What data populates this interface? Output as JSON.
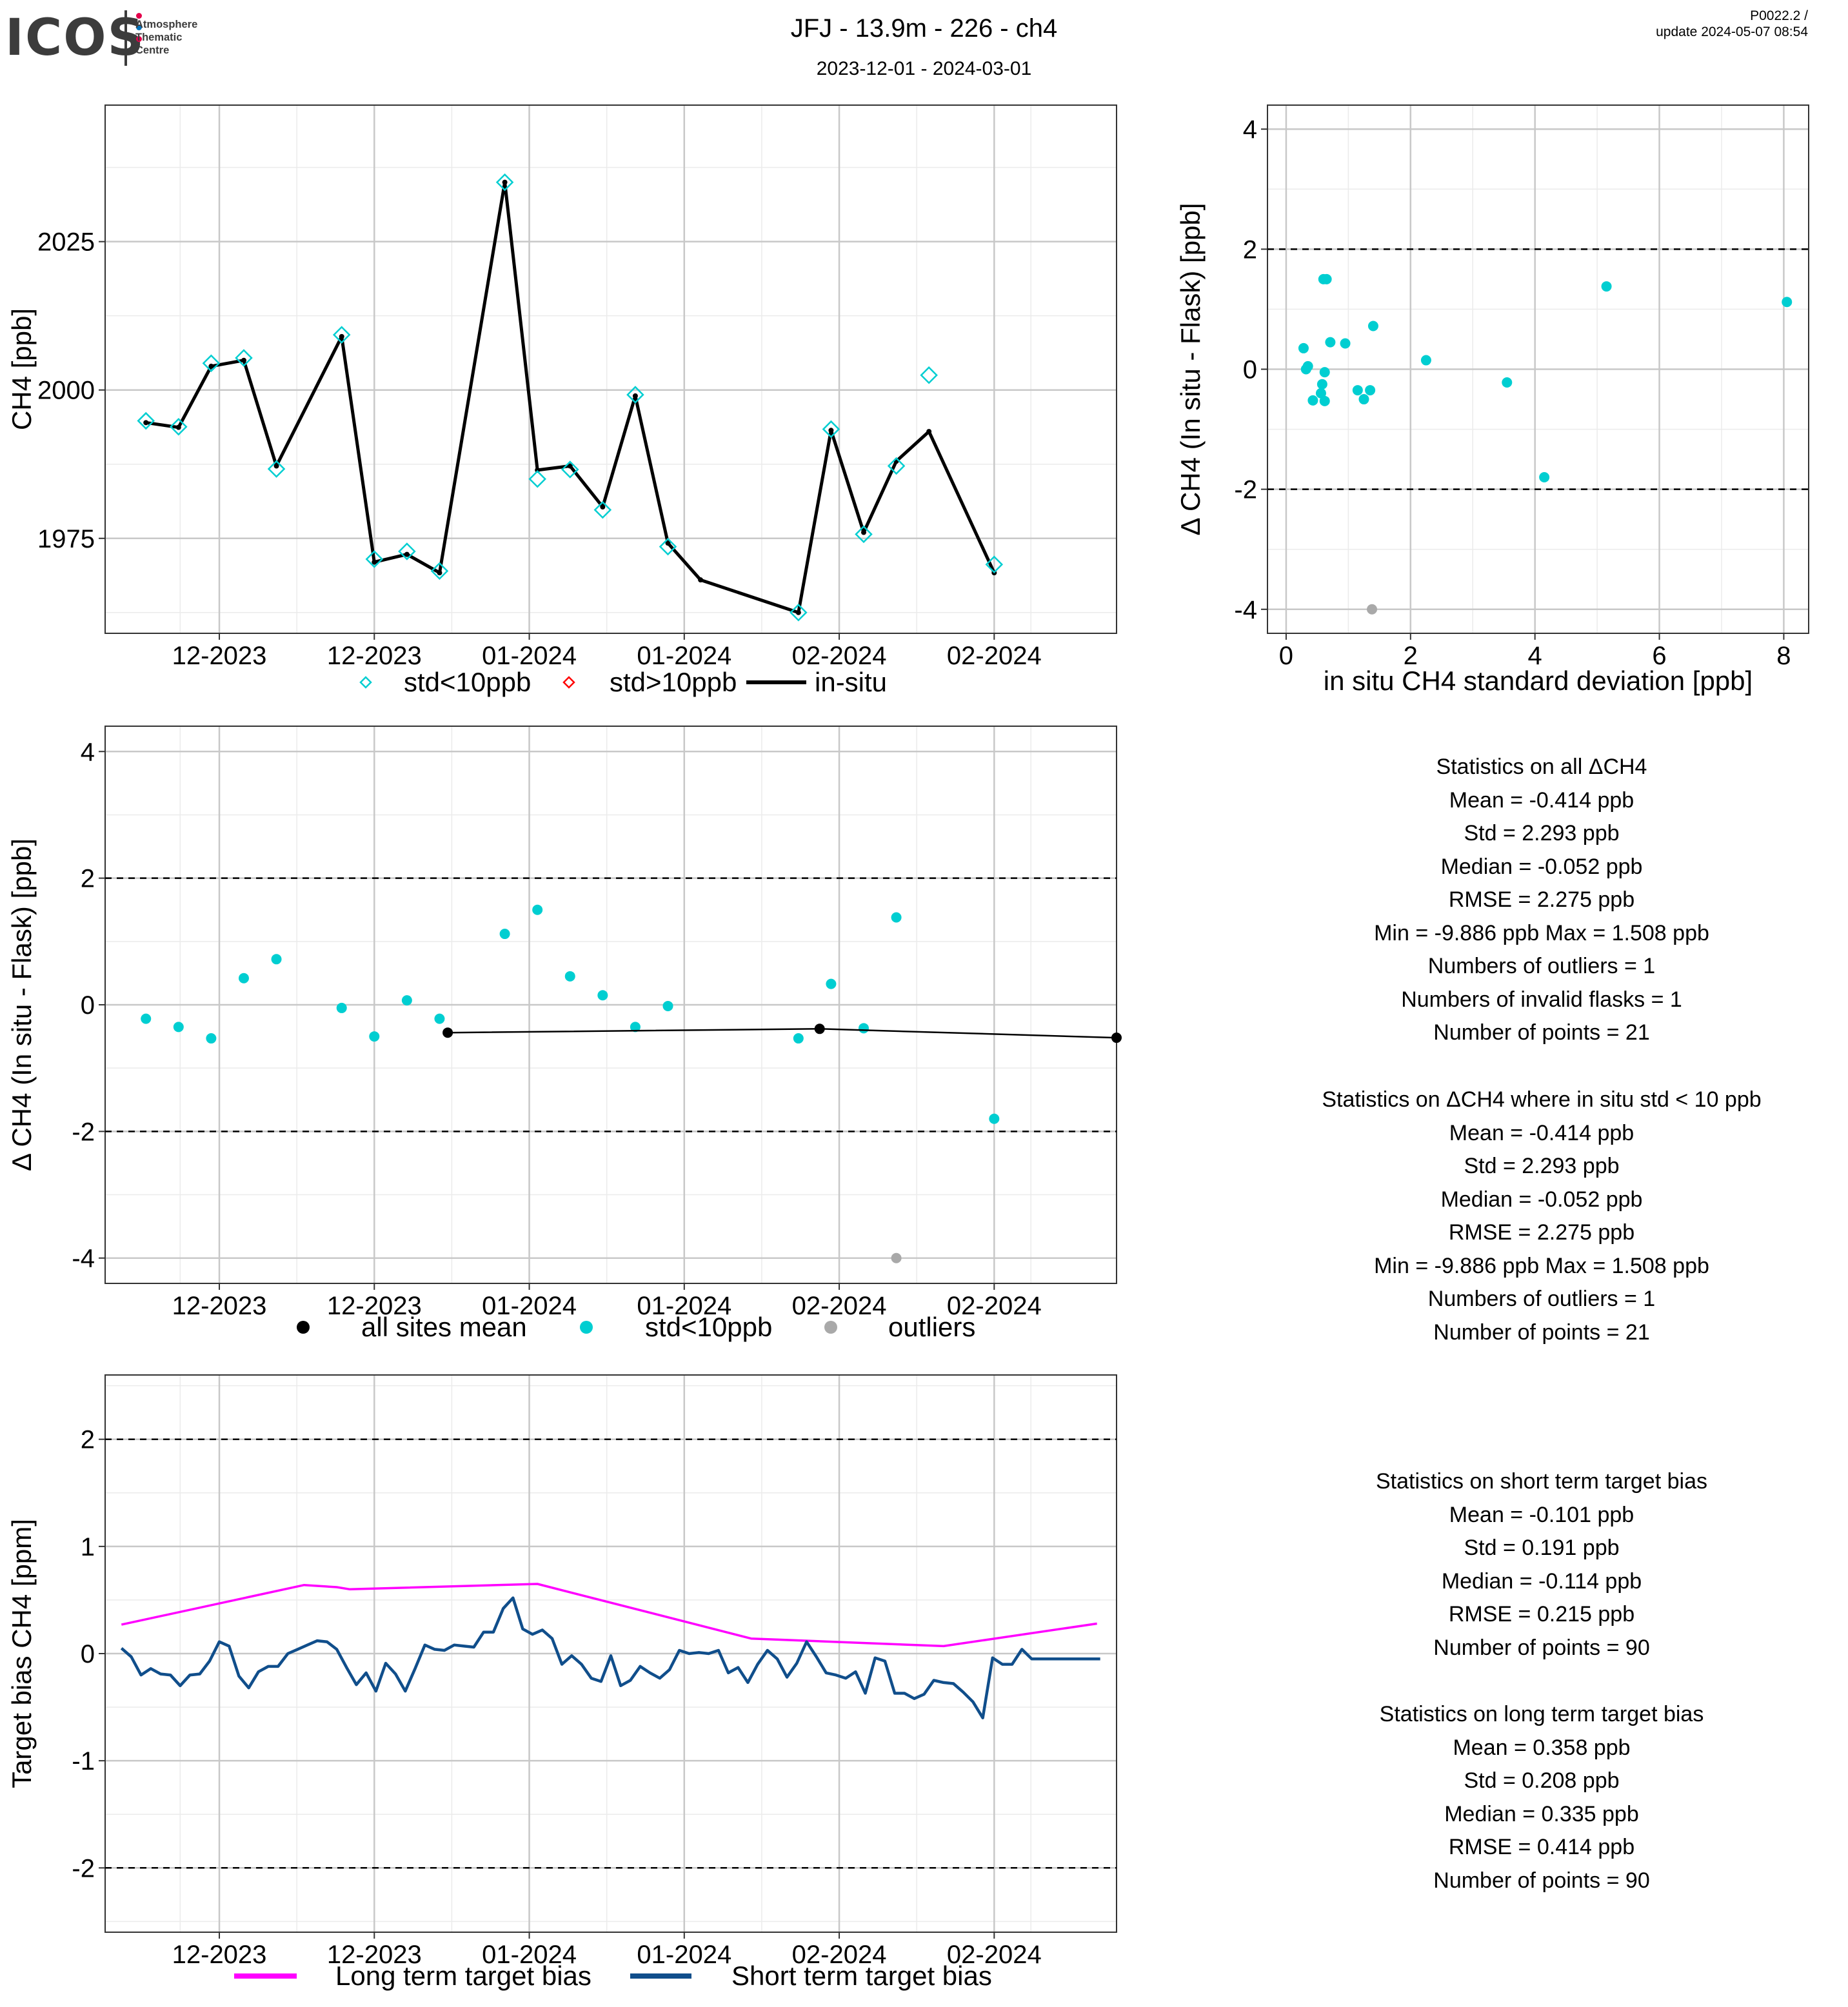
{
  "header": {
    "logo_text": "ICOS",
    "logo_sub": [
      "Atmosphere",
      "Thematic",
      "Centre"
    ],
    "title": "JFJ - 13.9m - 226 - ch4",
    "subtitle": "2023-12-01 - 2024-03-01",
    "version": "P0022.2 /",
    "update": "update  2024-05-07 08:54"
  },
  "colors": {
    "cyan": "#00CED1",
    "red": "#FF0000",
    "black": "#000000",
    "grey": "#A9A9A9",
    "magenta": "#FF00FF",
    "navy": "#104E8B"
  },
  "chart_data": [
    {
      "id": "ts",
      "type": "line",
      "ylabel": "CH4 [ppb]",
      "xlabel": "",
      "xticks": [
        "12-2023",
        "12-2023",
        "01-2024",
        "01-2024",
        "02-2024",
        "02-2024"
      ],
      "xlim": [
        0,
        31
      ],
      "ylim": [
        1959,
        2048
      ],
      "yticks": [
        1975,
        2000,
        2025
      ],
      "grid": true,
      "legend": {
        "position": "bottom",
        "entries": [
          "std<10ppb",
          "std>10ppb",
          "in-situ"
        ]
      },
      "series": [
        {
          "name": "in-situ",
          "color": "#000000",
          "x": [
            1.25,
            2.25,
            3.25,
            4.25,
            5.25,
            7.25,
            8.25,
            9.25,
            10.25,
            12.25,
            13.25,
            14.25,
            15.25,
            16.25,
            17.25,
            18.25,
            21.25,
            22.25,
            23.25,
            24.25,
            25.25,
            27.25
          ],
          "y": [
            1994.5,
            1993.7,
            2004,
            2005,
            1987.2,
            2009,
            1971,
            1972.3,
            1969.2,
            2035,
            1986.5,
            1987.2,
            1980.3,
            1999,
            1974.2,
            1968,
            1962.5,
            1993.2,
            1976,
            1988,
            1993,
            1969.2
          ]
        },
        {
          "name": "std<10ppb",
          "color": "#00CED1",
          "x": [
            1.25,
            2.25,
            3.25,
            4.25,
            5.25,
            7.25,
            8.25,
            9.25,
            10.25,
            12.25,
            13.25,
            14.25,
            15.25,
            16.25,
            17.25,
            21.25,
            22.25,
            23.25,
            24.25,
            25.25,
            27.25
          ],
          "y": [
            1994.8,
            1993.8,
            2004.5,
            2005.4,
            1986.7,
            2009.3,
            1971.5,
            1972.8,
            1969.5,
            2035,
            1985,
            1986.6,
            1979.8,
            1999.2,
            1973.6,
            1962.5,
            1993.4,
            1975.7,
            1987.2,
            2002.5,
            1970.6
          ]
        },
        {
          "name": "std>10ppb",
          "color": "#FF0000",
          "x": [],
          "y": []
        }
      ]
    },
    {
      "id": "scatter",
      "type": "scatter",
      "xlabel": "in situ CH4 standard deviation [ppb]",
      "ylabel": "Δ CH4 (In situ - Flask) [ppb]",
      "xlim": [
        -0.3,
        8.4
      ],
      "ylim": [
        -4.4,
        4.4
      ],
      "xticks": [
        0,
        2,
        4,
        6,
        8
      ],
      "yticks": [
        -4,
        -2,
        0,
        2,
        4
      ],
      "hlines": [
        -2,
        2
      ],
      "grid": true,
      "series": [
        {
          "name": "std<10ppb",
          "color": "#00CED1",
          "x": [
            0.28,
            0.32,
            0.35,
            0.43,
            0.56,
            0.58,
            0.62,
            0.62,
            0.65,
            0.71,
            0.95,
            1.15,
            1.25,
            1.35,
            1.4,
            2.25,
            3.55,
            4.15,
            5.15,
            8.05,
            0.6
          ],
          "y": [
            0.35,
            0.0,
            0.05,
            -0.52,
            -0.4,
            -0.25,
            -0.05,
            -0.53,
            1.5,
            0.45,
            0.43,
            -0.35,
            -0.5,
            -0.35,
            0.72,
            0.15,
            -0.22,
            -1.8,
            1.38,
            1.12,
            1.5
          ]
        },
        {
          "name": "outliers",
          "color": "#A9A9A9",
          "x": [
            1.38
          ],
          "y": [
            -4.0
          ]
        }
      ]
    },
    {
      "id": "diff",
      "type": "scatter",
      "xlabel": "",
      "ylabel": "Δ CH4 (In situ - Flask) [ppb]",
      "xticks": [
        "12-2023",
        "12-2023",
        "01-2024",
        "01-2024",
        "02-2024",
        "02-2024"
      ],
      "xlim": [
        0,
        31
      ],
      "ylim": [
        -4.4,
        4.4
      ],
      "yticks": [
        -4,
        -2,
        0,
        2,
        4
      ],
      "hlines": [
        -2,
        2
      ],
      "grid": true,
      "legend": {
        "position": "bottom",
        "entries": [
          "all sites mean",
          "std<10ppb",
          "outliers"
        ]
      },
      "series": [
        {
          "name": "std<10ppb",
          "color": "#00CED1",
          "x": [
            1.25,
            2.25,
            3.25,
            4.25,
            5.25,
            7.25,
            8.25,
            9.25,
            10.25,
            12.25,
            13.25,
            14.25,
            15.25,
            16.25,
            17.25,
            21.25,
            22.25,
            23.25,
            24.25,
            27.25
          ],
          "y": [
            -0.22,
            -0.35,
            -0.53,
            0.42,
            0.72,
            -0.05,
            -0.5,
            0.07,
            -0.22,
            1.12,
            1.5,
            0.45,
            0.15,
            -0.35,
            -0.02,
            -0.53,
            0.33,
            -0.37,
            1.38,
            -1.8
          ]
        },
        {
          "name": "outliers",
          "color": "#A9A9A9",
          "x": [
            24.25
          ],
          "y": [
            -4.0
          ]
        },
        {
          "name": "all sites mean",
          "color": "#000000",
          "x": [
            10.5,
            21.9,
            31
          ],
          "y": [
            -0.44,
            -0.38,
            -0.52
          ]
        }
      ]
    },
    {
      "id": "bias",
      "type": "line",
      "xlabel": "",
      "ylabel": "Target bias CH4 [ppm]",
      "xticks": [
        "12-2023",
        "12-2023",
        "01-2024",
        "01-2024",
        "02-2024",
        "02-2024"
      ],
      "xlim": [
        0,
        31
      ],
      "ylim": [
        -2.6,
        2.6
      ],
      "yticks": [
        -2,
        -1,
        0,
        1,
        2
      ],
      "hlines": [
        -2,
        2
      ],
      "grid": true,
      "legend": {
        "position": "bottom",
        "entries": [
          "Long term target bias",
          "Short term target bias"
        ]
      },
      "series": [
        {
          "name": "Long term target bias",
          "color": "#FF00FF",
          "x": [
            0.5,
            6.1,
            7.1,
            7.5,
            13.25,
            19.8,
            25.7,
            30.4
          ],
          "y": [
            0.27,
            0.64,
            0.62,
            0.6,
            0.65,
            0.14,
            0.07,
            0.28
          ]
        },
        {
          "name": "Short term target bias",
          "color": "#104E8B",
          "x": [
            0.5,
            0.8,
            1.1,
            1.4,
            1.7,
            2.0,
            2.3,
            2.6,
            2.9,
            3.2,
            3.5,
            3.8,
            4.1,
            4.4,
            4.7,
            5.0,
            5.3,
            5.6,
            5.9,
            6.2,
            6.5,
            6.8,
            7.1,
            7.4,
            7.7,
            8.0,
            8.3,
            8.6,
            8.9,
            9.2,
            9.5,
            9.8,
            10.1,
            10.4,
            10.7,
            11.0,
            11.3,
            11.6,
            11.9,
            12.2,
            12.5,
            12.8,
            13.1,
            13.4,
            13.7,
            14.0,
            14.3,
            14.6,
            14.9,
            15.2,
            15.5,
            15.8,
            16.1,
            16.4,
            16.7,
            17.0,
            17.3,
            17.6,
            17.9,
            18.2,
            18.5,
            18.8,
            19.1,
            19.4,
            19.7,
            20.0,
            20.3,
            20.6,
            20.9,
            21.2,
            21.5,
            21.8,
            22.1,
            22.4,
            22.7,
            23.0,
            23.3,
            23.6,
            23.9,
            24.2,
            24.5,
            24.8,
            25.1,
            25.4,
            25.7,
            26.0,
            26.3,
            26.6,
            26.9,
            27.2,
            27.5,
            27.8,
            28.1,
            28.4,
            28.7,
            29.0,
            29.3,
            29.6,
            29.9,
            30.2,
            30.5
          ],
          "y": [
            0.05,
            -0.03,
            -0.2,
            -0.14,
            -0.19,
            -0.2,
            -0.3,
            -0.2,
            -0.19,
            -0.07,
            0.11,
            0.07,
            -0.21,
            -0.32,
            -0.17,
            -0.12,
            -0.12,
            0.0,
            0.04,
            0.08,
            0.12,
            0.11,
            0.04,
            -0.13,
            -0.29,
            -0.18,
            -0.35,
            -0.09,
            -0.19,
            -0.35,
            -0.14,
            0.08,
            0.04,
            0.03,
            0.08,
            0.07,
            0.06,
            0.2,
            0.2,
            0.42,
            0.52,
            0.23,
            0.18,
            0.22,
            0.14,
            -0.1,
            -0.02,
            -0.1,
            -0.23,
            -0.26,
            -0.02,
            -0.3,
            -0.25,
            -0.12,
            -0.18,
            -0.23,
            -0.15,
            0.03,
            0.0,
            0.01,
            0.0,
            0.03,
            -0.18,
            -0.13,
            -0.27,
            -0.1,
            0.03,
            -0.05,
            -0.22,
            -0.09,
            0.11,
            -0.03,
            -0.18,
            -0.2,
            -0.23,
            -0.17,
            -0.37,
            -0.04,
            -0.07,
            -0.37,
            -0.37,
            -0.42,
            -0.38,
            -0.25,
            -0.27,
            -0.28,
            -0.36,
            -0.45,
            -0.6,
            -0.04,
            -0.1,
            -0.1,
            0.04,
            -0.05,
            -0.05,
            -0.05,
            -0.05,
            -0.05,
            -0.05,
            -0.05,
            -0.05
          ]
        }
      ]
    }
  ],
  "stats_all": {
    "heading": "Statistics on all ΔCH4",
    "lines": [
      "Mean =  -0.414 ppb",
      "Std =  2.293 ppb",
      "Median =  -0.052 ppb",
      "RMSE =  2.275 ppb",
      "Min =  -9.886 ppb Max =  1.508 ppb",
      "Numbers of outliers =  1",
      "Numbers of invalid flasks =  1",
      "Number of points =  21"
    ]
  },
  "stats_std": {
    "heading": "Statistics on ΔCH4 where in situ std < 10 ppb",
    "lines": [
      "Mean =  -0.414 ppb",
      "Std =  2.293 ppb",
      "Median =  -0.052 ppb",
      "RMSE =  2.275 ppb",
      "Min =  -9.886 ppb Max =  1.508 ppb",
      "Numbers of outliers =  1",
      "Number of points =  21"
    ]
  },
  "stats_short": {
    "heading": "Statistics on short term target bias",
    "lines": [
      "Mean =  -0.101 ppb",
      "Std =  0.191 ppb",
      "Median =  -0.114 ppb",
      "RMSE =  0.215 ppb",
      "Number of points =  90"
    ]
  },
  "stats_long": {
    "heading": "Statistics on long term target bias",
    "lines": [
      "Mean =  0.358 ppb",
      "Std =  0.208 ppb",
      "Median =  0.335 ppb",
      "RMSE =  0.414 ppb",
      "Number of points =  90"
    ]
  }
}
